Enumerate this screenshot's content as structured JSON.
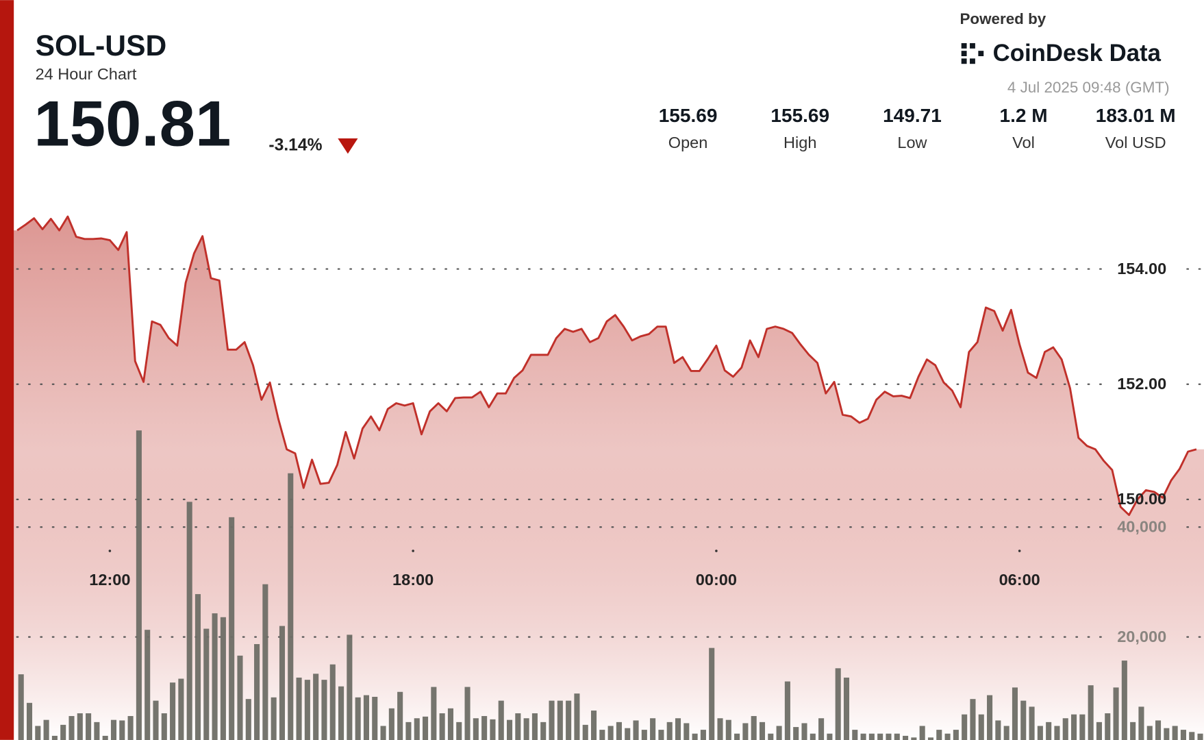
{
  "header": {
    "symbol": "SOL-USD",
    "subtitle": "24 Hour Chart",
    "price": "150.81",
    "change": "-3.14%",
    "stats": [
      {
        "value": "155.69",
        "label": "Open"
      },
      {
        "value": "155.69",
        "label": "High"
      },
      {
        "value": "149.71",
        "label": "Low"
      },
      {
        "value": "1.2 M",
        "label": "Vol"
      },
      {
        "value": "183.01 M",
        "label": "Vol USD"
      }
    ]
  },
  "branding": {
    "powered_by": "Powered by",
    "logo": "CoinDesk Data",
    "timestamp": "4 Jul 2025 09:48 (GMT)"
  },
  "chart_data": {
    "type": "line",
    "x": [
      610,
      620,
      630,
      640,
      650,
      660,
      670,
      680,
      690,
      700,
      710,
      720,
      730,
      740,
      750,
      760,
      770,
      780,
      790,
      800,
      810,
      820,
      830,
      840,
      850,
      860,
      870,
      880,
      890,
      900,
      910,
      920,
      930,
      940,
      950,
      960,
      970,
      980,
      990,
      1000,
      1010,
      1020,
      1030,
      1040,
      1050,
      1060,
      1070,
      1080,
      1090,
      1100,
      1110,
      1120,
      1130,
      1140,
      1150,
      1160,
      1170,
      1180,
      1190,
      1200,
      1210,
      1220,
      1230,
      1240,
      1250,
      1260,
      1270,
      1280,
      1290,
      1300,
      1310,
      1320,
      1330,
      1340,
      1350,
      1360,
      1370,
      1380,
      1390,
      1400,
      1410,
      1420,
      1430,
      1440,
      1450,
      1460,
      1470,
      1480,
      1490,
      1500,
      1510,
      1520,
      1530,
      1540,
      1550,
      1560,
      1570,
      1580,
      1590,
      1600,
      1610,
      1620,
      1630,
      1640,
      1650,
      1660,
      1670,
      1680,
      1690,
      1700,
      1710,
      1720,
      1730,
      1740,
      1750,
      1760,
      1770,
      1780,
      1790,
      1800,
      1810,
      1820,
      1830,
      1840,
      1850,
      1860,
      1870,
      1880,
      1890,
      1900,
      1910,
      1920,
      1930,
      1940,
      1950,
      1960,
      1970,
      1980,
      1990,
      2000,
      2010
    ],
    "series": [
      {
        "type": "line",
        "color": "#c0302a",
        "values": [
          154.67,
          154.77,
          154.88,
          154.69,
          154.87,
          154.67,
          154.91,
          154.56,
          154.52,
          154.52,
          154.53,
          154.5,
          154.33,
          154.64,
          152.4,
          152.04,
          153.09,
          153.03,
          152.8,
          152.67,
          153.76,
          154.27,
          154.57,
          153.84,
          153.8,
          152.6,
          152.6,
          152.73,
          152.33,
          151.73,
          152.03,
          151.4,
          150.87,
          150.8,
          150.2,
          150.69,
          150.27,
          150.29,
          150.6,
          151.17,
          150.71,
          151.23,
          151.44,
          151.2,
          151.57,
          151.67,
          151.63,
          151.67,
          151.13,
          151.53,
          151.67,
          151.53,
          151.76,
          151.77,
          151.77,
          151.87,
          151.6,
          151.84,
          151.84,
          152.11,
          152.24,
          152.51,
          152.51,
          152.51,
          152.8,
          152.96,
          152.91,
          152.96,
          152.73,
          152.8,
          153.09,
          153.2,
          153.0,
          152.76,
          152.83,
          152.87,
          153.0,
          153.0,
          152.37,
          152.47,
          152.23,
          152.23,
          152.44,
          152.67,
          152.24,
          152.13,
          152.29,
          152.76,
          152.47,
          152.96,
          153.0,
          152.96,
          152.89,
          152.69,
          152.51,
          152.37,
          151.84,
          152.04,
          151.47,
          151.44,
          151.33,
          151.4,
          151.73,
          151.87,
          151.79,
          151.8,
          151.76,
          152.13,
          152.43,
          152.33,
          152.03,
          151.89,
          151.6,
          152.56,
          152.73,
          153.33,
          153.27,
          152.93,
          153.29,
          152.69,
          152.2,
          152.11,
          152.56,
          152.64,
          152.43,
          151.93,
          151.07,
          150.93,
          150.87,
          150.67,
          150.51,
          149.87,
          149.73,
          150.0,
          150.16,
          150.13,
          150.03,
          150.33,
          150.53,
          150.83,
          150.87
        ]
      },
      {
        "type": "bar",
        "axis": "y2",
        "color": "#6e6e66",
        "values": [
          13200,
          8000,
          3800,
          4900,
          2000,
          4000,
          5600,
          6100,
          6100,
          4500,
          2000,
          4900,
          4800,
          5600,
          57600,
          21300,
          8400,
          6100,
          11700,
          12400,
          44600,
          27800,
          21500,
          24300,
          23600,
          41800,
          16600,
          8700,
          18700,
          29600,
          9000,
          22000,
          49800,
          12600,
          12200,
          13300,
          12200,
          15000,
          11000,
          20400,
          9000,
          9400,
          9100,
          3800,
          7000,
          10000,
          4500,
          5200,
          5500,
          10900,
          6100,
          7000,
          4500,
          10900,
          5200,
          5600,
          5000,
          8400,
          4900,
          6100,
          5200,
          6100,
          4500,
          8400,
          8400,
          8400,
          9700,
          4000,
          6600,
          3100,
          3800,
          4500,
          3400,
          4800,
          3100,
          5200,
          3100,
          4500,
          5200,
          4300,
          2400,
          3100,
          18000,
          5200,
          4900,
          2400,
          4300,
          5600,
          4500,
          2400,
          3800,
          11900,
          3600,
          4300,
          2400,
          5200,
          2400,
          14300,
          12600,
          3100,
          2400,
          2400,
          2400,
          2400,
          2400,
          2000,
          1700,
          3800,
          1700,
          3100,
          2400,
          3100,
          5900,
          8700,
          5900,
          9400,
          4800,
          3800,
          10800,
          8400,
          7300,
          3800,
          4500,
          3800,
          5200,
          5900,
          5900,
          11200,
          4500,
          6100,
          10800,
          15700,
          4500,
          7300,
          3800,
          4800,
          3400,
          3800,
          3100,
          2700,
          2400
        ]
      }
    ],
    "xlim": [
      606,
      2019
    ],
    "xticks": [
      {
        "value": 720,
        "label": "12:00"
      },
      {
        "value": 1080,
        "label": "18:00"
      },
      {
        "value": 1440,
        "label": "00:00"
      },
      {
        "value": 1800,
        "label": "06:00"
      }
    ],
    "ylim": [
      145.8,
      155.4
    ],
    "yticks": [
      {
        "value": 150,
        "label": "150.00"
      },
      {
        "value": 152,
        "label": "152.00"
      },
      {
        "value": 154,
        "label": "154.00"
      }
    ],
    "y2lim": [
      0,
      100000
    ],
    "y2ticks": [
      {
        "value": 20000,
        "label": "20,000"
      },
      {
        "value": 40000,
        "label": "40,000"
      }
    ],
    "grid": true
  }
}
